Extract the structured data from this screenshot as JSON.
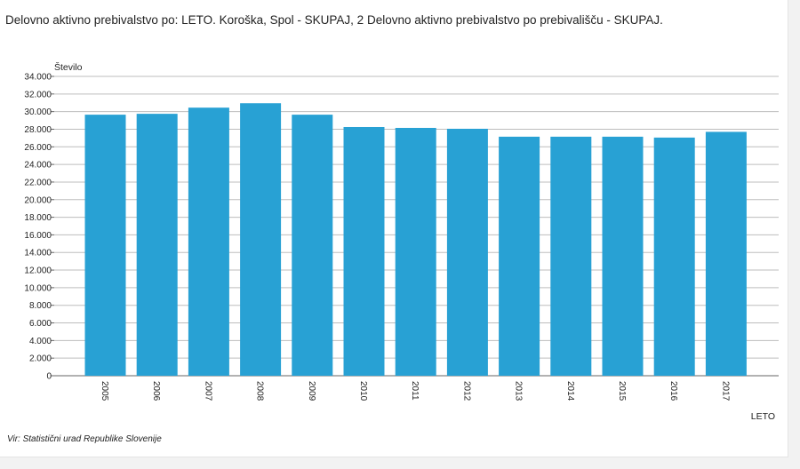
{
  "title": "Delovno aktivno prebivalstvo po: LETO. Koroška, Spol - SKUPAJ, 2 Delovno aktivno prebivalstvo po prebivališču - SKUPAJ.",
  "source": "Vir: Statistični urad Republike Slovenije",
  "colors": {
    "bar": "#28a1d4",
    "grid": "#bdbdbd",
    "axis": "#666666"
  },
  "chart_data": {
    "type": "bar",
    "title": "Delovno aktivno prebivalstvo po: LETO. Koroška, Spol - SKUPAJ, 2 Delovno aktivno prebivalstvo po prebivališču - SKUPAJ.",
    "xlabel": "LETO",
    "ylabel": "Število",
    "categories": [
      "2005",
      "2006",
      "2007",
      "2008",
      "2009",
      "2010",
      "2011",
      "2012",
      "2013",
      "2014",
      "2015",
      "2016",
      "2017"
    ],
    "values": [
      29650,
      29750,
      30450,
      30950,
      29650,
      28250,
      28150,
      28050,
      27150,
      27150,
      27150,
      27050,
      27700
    ],
    "ylim": [
      0,
      34000
    ],
    "yticks": [
      0,
      2000,
      4000,
      6000,
      8000,
      10000,
      12000,
      14000,
      16000,
      18000,
      20000,
      22000,
      24000,
      26000,
      28000,
      30000,
      32000,
      34000
    ],
    "ytick_labels": [
      "0",
      "2.000",
      "4.000",
      "6.000",
      "8.000",
      "10.000",
      "12.000",
      "14.000",
      "16.000",
      "18.000",
      "20.000",
      "22.000",
      "24.000",
      "26.000",
      "28.000",
      "30.000",
      "32.000",
      "34.000"
    ],
    "grid": true,
    "legend": "none"
  }
}
